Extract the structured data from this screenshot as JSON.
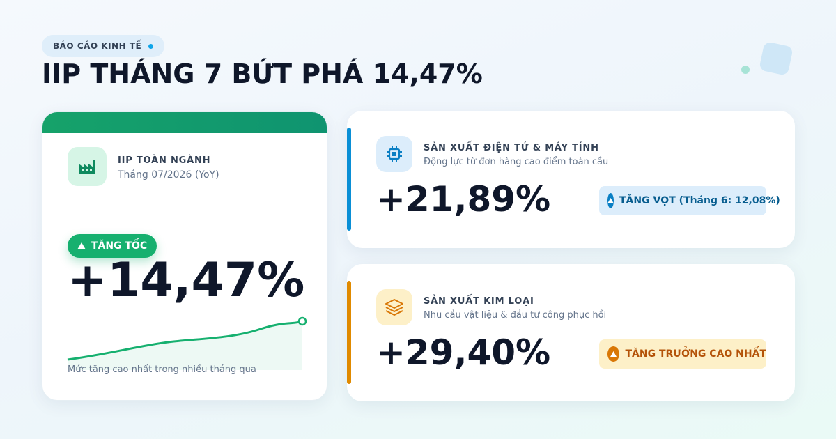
{
  "header": {
    "tag": "BÁO CÁO KINH TẾ",
    "title": "IIP THÁNG 7 BỨT PHÁ 14,47%"
  },
  "main_card": {
    "label": "IIP TOÀN NGÀNH",
    "subtitle": "Tháng 07/2026 (YoY)",
    "badge": "TĂNG TỐC",
    "value": "+14,47%",
    "caption": "Mức tăng cao nhất trong nhiều tháng qua"
  },
  "cards": [
    {
      "title": "SẢN XUẤT ĐIỆN TỬ & MÁY TÍNH",
      "subtitle": "Động lực từ đơn hàng cao điểm toàn cầu",
      "value": "+21,89%",
      "badge": "TĂNG VỌT (Tháng 6: 12,08%)"
    },
    {
      "title": "SẢN XUẤT KIM LOẠI",
      "subtitle": "Nhu cầu vật liệu & đầu tư công phục hồi",
      "value": "+29,40%",
      "badge": "TĂNG TRƯỞNG CAO NHẤT"
    }
  ]
}
